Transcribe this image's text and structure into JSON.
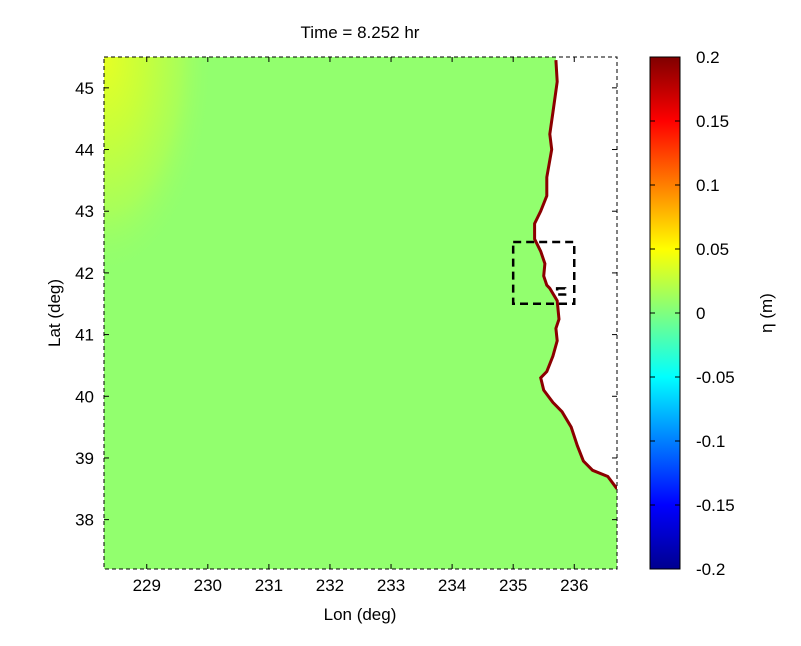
{
  "chart_data": {
    "type": "heatmap",
    "title": "Time = 8.252 hr",
    "xlabel": "Lon (deg)",
    "ylabel": "Lat (deg)",
    "xlim": [
      228.3,
      236.7
    ],
    "ylim": [
      37.2,
      45.5
    ],
    "x_ticks": [
      229,
      230,
      231,
      232,
      233,
      234,
      235,
      236
    ],
    "y_ticks": [
      38,
      39,
      40,
      41,
      42,
      43,
      44,
      45
    ],
    "colorbar": {
      "label": "η (m)",
      "range": [
        -0.2,
        0.2
      ],
      "ticks": [
        0.2,
        0.15,
        0.1,
        0.05,
        0,
        -0.05,
        -0.1,
        -0.15,
        -0.2
      ],
      "tick_labels": [
        "0.2",
        "0.15",
        "0.1",
        "0.05",
        "0",
        "-0.05",
        "-0.1",
        "-0.15",
        "-0.2"
      ],
      "colormap": "jet"
    },
    "field": {
      "background_value": 0.01,
      "background_color": "#92ff6e",
      "nw_corner_max_value": 0.045,
      "land_color": "#ffffff",
      "coastline_value": 0.2
    },
    "coastline": {
      "lon": [
        235.7,
        235.72,
        235.65,
        235.6,
        235.63,
        235.55,
        235.55,
        235.45,
        235.35,
        235.35,
        235.45,
        235.52,
        235.5,
        235.55,
        235.6,
        235.72,
        235.75,
        235.7,
        235.72,
        235.65,
        235.55,
        235.45,
        235.5,
        235.65,
        235.8,
        235.95,
        236.05,
        236.15,
        236.3,
        236.55,
        236.7
      ],
      "lat": [
        45.45,
        45.1,
        44.6,
        44.25,
        44.0,
        43.55,
        43.25,
        43.0,
        42.8,
        42.55,
        42.35,
        42.15,
        41.95,
        41.8,
        41.75,
        41.55,
        41.25,
        41.1,
        40.9,
        40.65,
        40.4,
        40.3,
        40.1,
        39.9,
        39.75,
        39.5,
        39.2,
        38.95,
        38.8,
        38.7,
        38.5
      ]
    },
    "boxes": [
      {
        "name": "outer-box",
        "lon": [
          235.0,
          236.0
        ],
        "lat": [
          41.5,
          42.5
        ]
      },
      {
        "name": "inner-box",
        "lon": [
          235.72,
          235.85
        ],
        "lat": [
          41.65,
          41.75
        ]
      }
    ],
    "colors": {
      "coast_edge": "#8b0000",
      "axes": "#000000",
      "nw_corner": "#e6ff24"
    }
  }
}
